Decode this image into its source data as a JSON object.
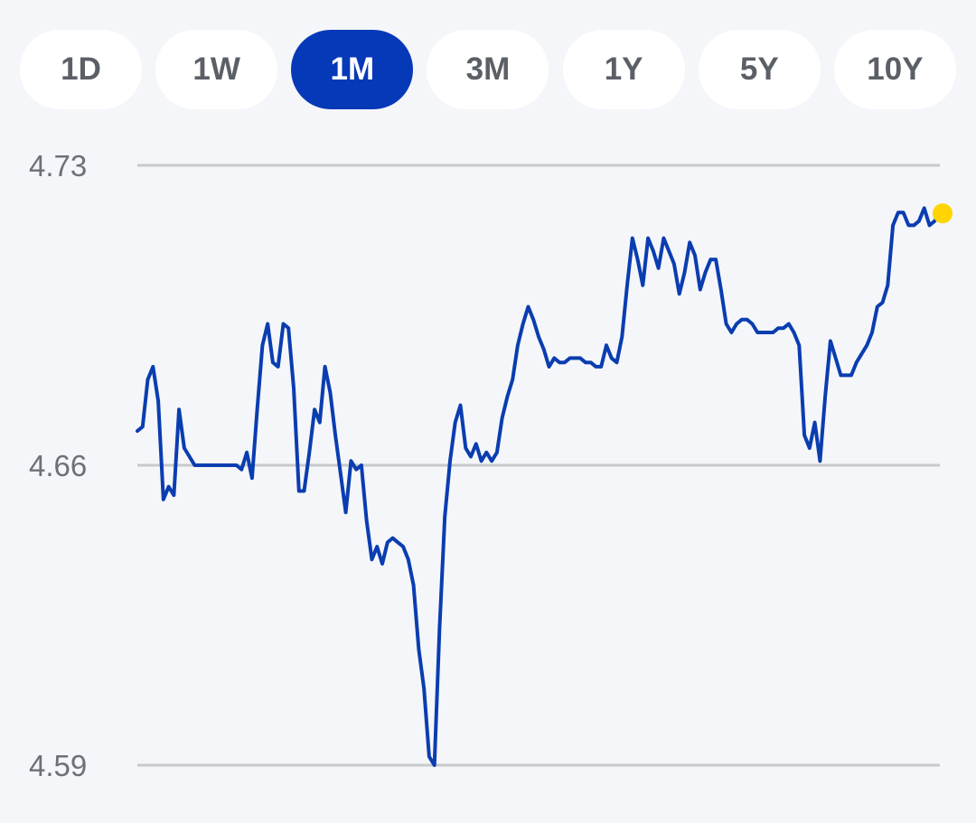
{
  "range_tabs": [
    {
      "label": "1D",
      "active": false
    },
    {
      "label": "1W",
      "active": false
    },
    {
      "label": "1M",
      "active": true
    },
    {
      "label": "3M",
      "active": false
    },
    {
      "label": "1Y",
      "active": false
    },
    {
      "label": "5Y",
      "active": false
    },
    {
      "label": "10Y",
      "active": false
    }
  ],
  "colors": {
    "accent": "#0639b8",
    "line": "#0a3db0",
    "marker": "#ffd400",
    "grid": "#c7c9cd",
    "background": "#f4f6f9"
  },
  "chart_data": {
    "type": "line",
    "title": "",
    "xlabel": "",
    "ylabel": "",
    "ylim": [
      4.59,
      4.73
    ],
    "yticks": [
      4.73,
      4.66,
      4.59
    ],
    "grid": "horizontal",
    "x_ticks_visible": false,
    "last_point_marker": true,
    "series": [
      {
        "values": [
          4.668,
          4.669,
          4.68,
          4.683,
          4.675,
          4.652,
          4.655,
          4.653,
          4.673,
          4.664,
          4.662,
          4.66,
          4.66,
          4.66,
          4.66,
          4.66,
          4.66,
          4.66,
          4.66,
          4.66,
          4.659,
          4.663,
          4.657,
          4.673,
          4.688,
          4.693,
          4.684,
          4.683,
          4.693,
          4.692,
          4.678,
          4.654,
          4.654,
          4.663,
          4.673,
          4.67,
          4.683,
          4.677,
          4.667,
          4.658,
          4.649,
          4.661,
          4.659,
          4.66,
          4.647,
          4.638,
          4.641,
          4.637,
          4.642,
          4.643,
          4.642,
          4.641,
          4.638,
          4.632,
          4.617,
          4.608,
          4.592,
          4.59,
          4.622,
          4.648,
          4.661,
          4.67,
          4.674,
          4.664,
          4.662,
          4.665,
          4.661,
          4.663,
          4.661,
          4.663,
          4.671,
          4.676,
          4.68,
          4.688,
          4.693,
          4.697,
          4.694,
          4.69,
          4.687,
          4.683,
          4.685,
          4.684,
          4.684,
          4.685,
          4.685,
          4.685,
          4.684,
          4.684,
          4.683,
          4.683,
          4.688,
          4.685,
          4.684,
          4.69,
          4.702,
          4.713,
          4.708,
          4.702,
          4.713,
          4.71,
          4.706,
          4.713,
          4.71,
          4.707,
          4.7,
          4.705,
          4.712,
          4.709,
          4.701,
          4.705,
          4.708,
          4.708,
          4.701,
          4.693,
          4.691,
          4.693,
          4.694,
          4.694,
          4.693,
          4.691,
          4.691,
          4.691,
          4.691,
          4.692,
          4.692,
          4.693,
          4.691,
          4.688,
          4.667,
          4.664,
          4.67,
          4.661,
          4.676,
          4.689,
          4.685,
          4.681,
          4.681,
          4.681,
          4.684,
          4.686,
          4.688,
          4.691,
          4.697,
          4.698,
          4.702,
          4.716,
          4.719,
          4.719,
          4.716,
          4.716,
          4.717,
          4.72,
          4.716,
          4.717,
          4.719
        ]
      }
    ]
  }
}
